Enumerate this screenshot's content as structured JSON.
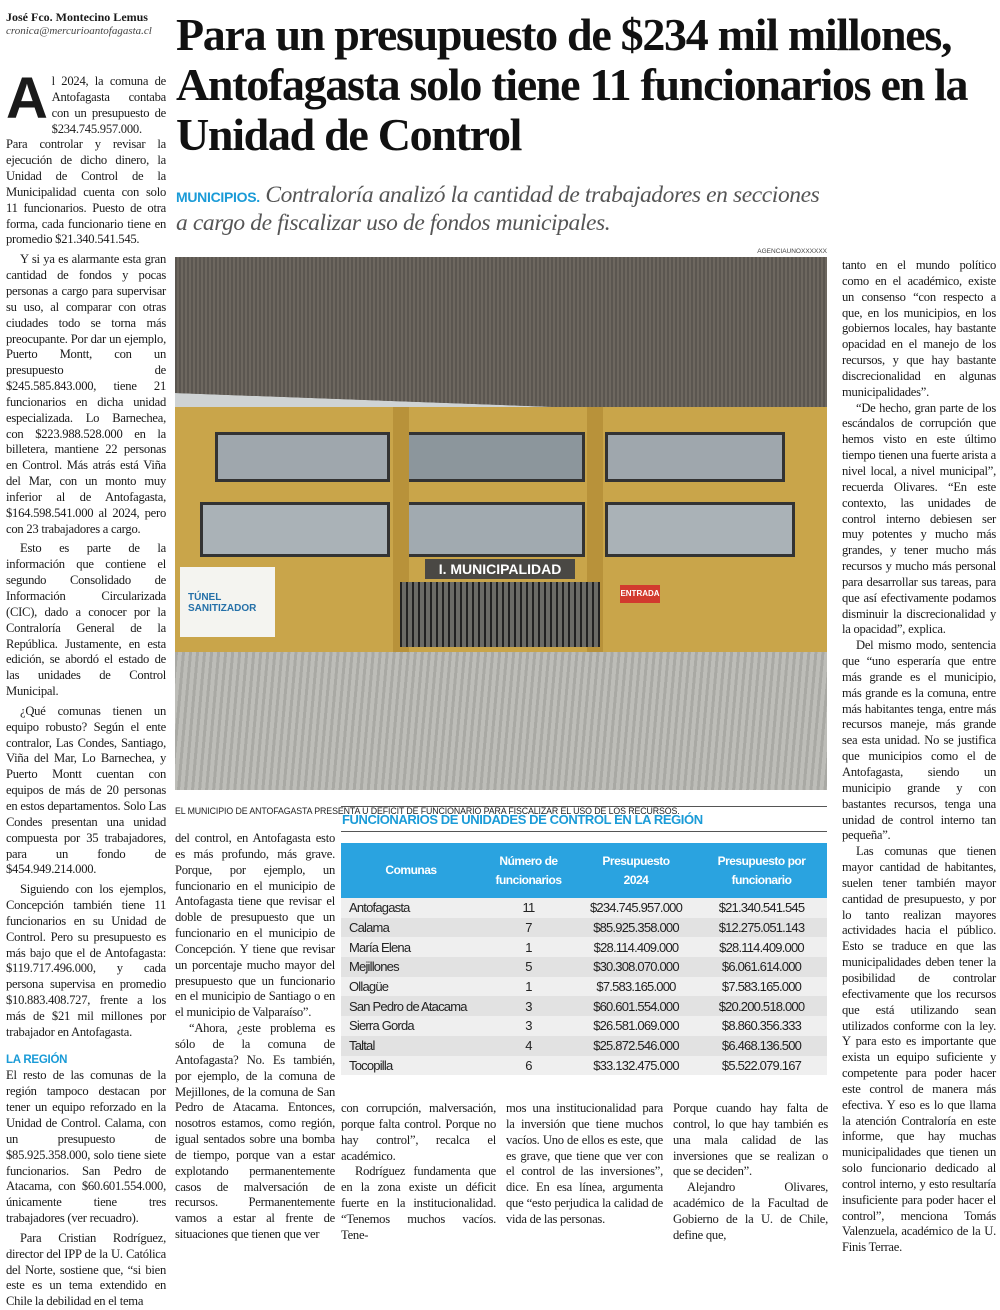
{
  "byline": {
    "author": "José Fco. Montecino Lemus",
    "email": "cronica@mercurioantofagasta.cl"
  },
  "headline": "Para un presupuesto de $234 mil millones, Antofagasta solo tiene 11 funcionarios en la Unidad de Control",
  "subheadline": {
    "kicker": "MUNICIPIOS.",
    "text": "Contraloría analizó la cantidad de trabajadores en secciones a cargo de fiscalizar uso de fondos municipales."
  },
  "photo": {
    "credit": "AGENCIAUNOXXXXXX",
    "sign": "I. MUNICIPALIDAD",
    "tunnel_sign": "TÚNEL SANITIZADOR",
    "entrance_sign": "ENTRADA",
    "caption": "EL MUNICIPIO DE ANTOFAGASTA PRESENTA U  DÉFICIT DE FUNCIONARIO PARA FISCALIZAR EL USO DE LOS RECURSOS."
  },
  "body": {
    "dropcap": "A",
    "col1": [
      "l 2024, la comuna de Antofagasta contaba con un presupuesto de $234.745.957.000. Para controlar y revisar la ejecución de dicho dinero, la Unidad de Control de la Municipalidad cuenta con solo 11 funcionarios. Puesto de otra forma, cada funcionario tiene en promedio $21.340.541.545.",
      "Y si ya es alarmante esta gran cantidad de fondos y pocas personas a cargo para supervisar su uso, al comparar con otras ciudades todo se torna más preocupante. Por dar un ejemplo, Puerto Montt, con un presupuesto de $245.585.843.000, tiene 21 funcionarios en dicha unidad especializada. Lo Barnechea, con $223.988.528.000 en la billetera, mantiene 22 personas en Control. Más atrás está Viña del Mar, con un monto muy inferior al de Antofagasta, $164.598.541.000 al 2024, pero con 23 trabajadores a cargo.",
      "Esto es parte de la información que contiene el segundo Consolidado de Información Circularizada (CIC), dado a conocer por la Contraloría General de la República. Justamente, en esta edición, se abordó el estado de las unidades de Control Municipal.",
      "¿Qué comunas tienen un equipo robusto? Según el ente contralor, Las Condes, Santiago, Viña del Mar, Lo Barnechea, y Puerto Montt cuentan con equipos de más de 20 personas en estos departamentos. Solo Las Condes presentan una unidad compuesta por 35 trabajadores, para un fondo de $454.949.214.000.",
      "Siguiendo con los ejemplos, Concepción también tiene 11 funcionarios en su Unidad de Control. Pero su presupuesto es más bajo que el de Antofagasta: $119.717.496.000, y cada persona supervisa en promedio $10.883.408.727, frente a los más de $21 mil millones por trabajador en Antofagasta."
    ],
    "section_title": "LA REGIÓN",
    "col1b": [
      "El resto de las comunas de la región tampoco destacan por tener un equipo reforzado en la Unidad de Control. Calama, con un presupuesto de $85.925.358.000, solo tiene siete funcionarios. San Pedro de Atacama, con $60.601.554.000, únicamente tiene tres trabajadores (ver recuadro).",
      "Para Cristian Rodríguez, director del IPP de la U. Católica del Norte, sostiene que, “si bien este es un tema extendido en Chile la debilidad en el tema"
    ],
    "col2": [
      "del control, en Antofagasta esto es más profundo, más grave. Porque, por ejemplo, un funcionario en el municipio de Antofagasta tiene que revisar el doble de presupuesto que un funcionario en el municipio de Concepción. Y tiene que revisar un porcentaje mucho mayor del presupuesto que un funcionario en el municipio de Santiago o en el municipio de Valparaíso”.",
      "“Ahora, ¿este problema es sólo de la comuna de Antofagasta? No. Es también, por ejemplo, de la comuna de Mejillones, de la comuna de San Pedro de Atacama. Entonces, nosotros estamos, como región, igual sentados sobre una bomba de tiempo, porque van a estar explotando permanentemente casos de malversación de recursos. Permanentemente vamos a estar al frente de situaciones que tienen que ver"
    ],
    "col3": [
      "con corrupción, malversación, porque falta control. Porque no hay control”, recalca el académico.",
      "Rodríguez fundamenta que en la zona existe un déficit fuerte en la institucionalidad. “Tenemos muchos vacíos. Tene-"
    ],
    "col4": [
      "mos una institucionalidad para la inversión que tiene muchos vacíos. Uno de ellos es este, que es grave, que tiene que ver con el control de las inversiones”, dice. En esa línea, argumenta que “esto perjudica la calidad de vida de las personas."
    ],
    "col5": [
      "Porque cuando hay falta de control, lo que hay también es una mala calidad de las inversiones que se realizan o que se deciden”.",
      "Alejandro Olivares, académico de la Facultad de Gobierno de la U. de Chile, define que,"
    ],
    "col6": [
      "tanto en el mundo político como en el académico, existe un consenso “con respecto a que, en los municipios, en los gobiernos locales, hay bastante opacidad en el manejo de los recursos, y que hay bastante discrecionalidad en algunas municipalidades”.",
      "“De hecho, gran parte de los escándalos de corrupción que hemos visto en este último tiempo tienen una fuerte arista a nivel local, a nivel municipal”, recuerda Olivares. “En este contexto, las unidades de control interno debiesen ser muy potentes y mucho más grandes, y tener mucho más recursos y mucho más personal para desarrollar sus tareas, para que así efectivamente podamos disminuir la discrecionalidad y la opacidad”, explica.",
      "Del mismo modo, sentencia que “uno esperaría que entre más grande es el municipio, más grande es la comuna, entre más habitantes tenga, entre más recursos maneje, más grande sea esta unidad. No se justifica que municipios como el de Antofagasta, siendo un municipio grande y con bastantes recursos, tenga una unidad de control interno tan pequeña”.",
      "Las comunas que tienen mayor cantidad de habitantes, suelen tener también mayor cantidad de presupuesto, y por lo tanto realizan mayores actividades hacia el público. Esto se traduce en que las municipalidades deben tener la posibilidad de controlar efectivamente que los recursos que está utilizando sean utilizados conforme con la ley. Y para esto es importante que exista un equipo suficiente y competente para poder hacer este control de manera más efectiva. Y eso es lo que llama la atención Contraloría en este informe, que hay muchas municipalidades que tienen un solo funcionario dedicado al control interno, y esto resultaría insuficiente para poder hacer el control”, menciona Tomás Valenzuela, académico de la U. Finis Terrae."
    ]
  },
  "table": {
    "title": "FUNCIONARIOS DE UNIDADES DE CONTROL EN LA REGIÓN",
    "accent": "#2aa3e0",
    "headers": [
      "Comunas",
      "Número de funcionarios",
      "Presupuesto 2024",
      "Presupuesto por funcionario"
    ],
    "rows": [
      [
        "Antofagasta",
        "11",
        "$234.745.957.000",
        "$21.340.541.545"
      ],
      [
        "Calama",
        "7",
        "$85.925.358.000",
        "$12.275.051.143"
      ],
      [
        "María Elena",
        "1",
        "$28.114.409.000",
        "$28.114.409.000"
      ],
      [
        "Mejillones",
        "5",
        "$30.308.070.000",
        "$6.061.614.000"
      ],
      [
        "Ollagüe",
        "1",
        "$7.583.165.000",
        "$7.583.165.000"
      ],
      [
        "San Pedro de Atacama",
        "3",
        "$60.601.554.000",
        "$20.200.518.000"
      ],
      [
        "Sierra Gorda",
        "3",
        "$26.581.069.000",
        "$8.860.356.333"
      ],
      [
        "Taltal",
        "4",
        "$25.872.546.000",
        "$6.468.136.500"
      ],
      [
        "Tocopilla",
        "6",
        "$33.132.475.000",
        "$5.522.079.167"
      ]
    ]
  }
}
